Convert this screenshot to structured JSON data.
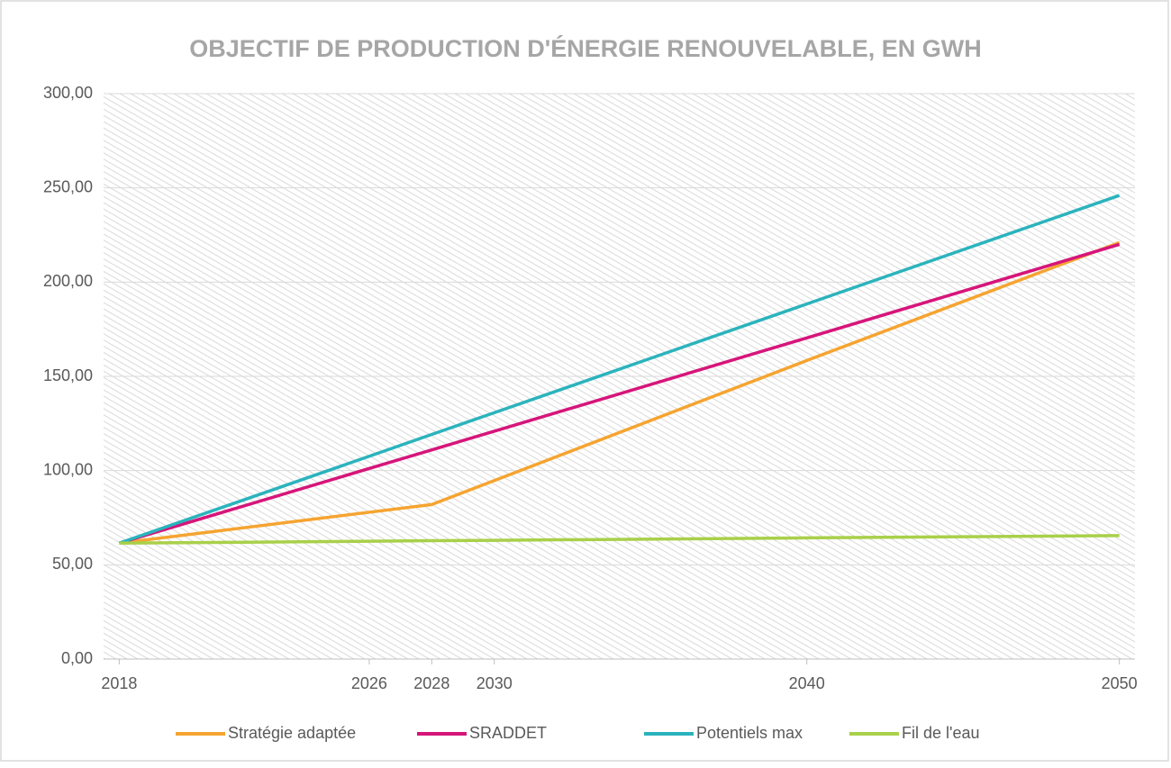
{
  "chart_data": {
    "type": "line",
    "title": "OBJECTIF DE PRODUCTION D'ÉNERGIE RENOUVELABLE, EN GWH",
    "x": [
      2018,
      2026,
      2028,
      2030,
      2040,
      2050
    ],
    "series": [
      {
        "name": "Stratégie adaptée",
        "color": "#f5a431",
        "values": [
          61.5,
          77.9,
          82,
          94.7,
          158.4,
          221
        ]
      },
      {
        "name": "SRADDET",
        "color": "#d6157a",
        "values": [
          61.5,
          101.1,
          111,
          120.9,
          170.4,
          220
        ]
      },
      {
        "name": "Potentiels max",
        "color": "#2bb3bd",
        "values": [
          61.5,
          107.6,
          119.2,
          130.7,
          188.4,
          246
        ]
      },
      {
        "name": "Fil de l'eau",
        "color": "#a9d04a",
        "values": [
          61.5,
          62.5,
          62.8,
          63,
          64.3,
          65.5
        ]
      }
    ],
    "xlim": [
      2017.5,
      2050.5
    ],
    "xticks": [
      2018,
      2026,
      2028,
      2030,
      2040,
      2050
    ],
    "ylim": [
      0,
      300
    ],
    "yticks": [
      {
        "value": 0,
        "label": "0,00"
      },
      {
        "value": 50,
        "label": "50,00"
      },
      {
        "value": 100,
        "label": "100,00"
      },
      {
        "value": 150,
        "label": "150,00"
      },
      {
        "value": 200,
        "label": "200,00"
      },
      {
        "value": 250,
        "label": "250,00"
      },
      {
        "value": 300,
        "label": "300,00"
      }
    ],
    "grid": true,
    "legend": "bottom"
  }
}
